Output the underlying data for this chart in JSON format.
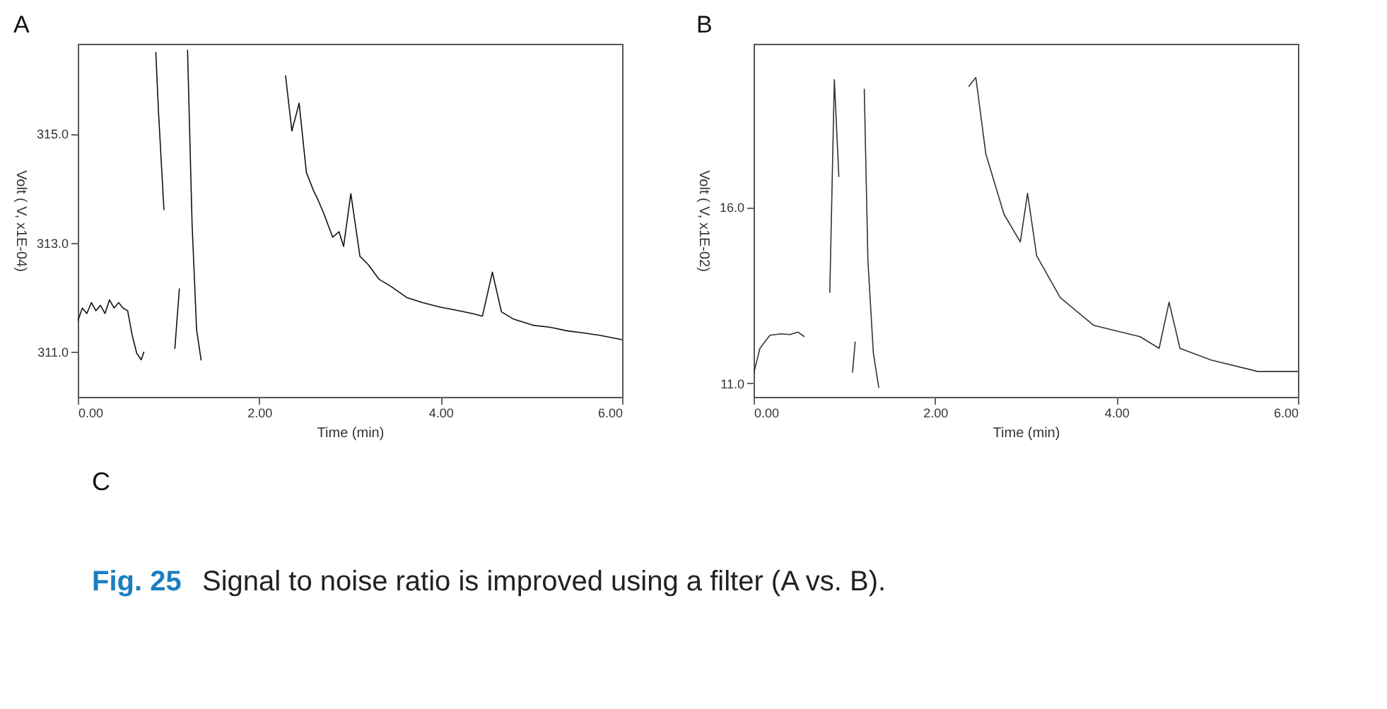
{
  "chart_data": [
    {
      "type": "line",
      "title": "A",
      "xlabel": "Time (min)",
      "ylabel": "Volt ( V, x1E-04)",
      "xlim": [
        0,
        6
      ],
      "ylim": [
        310.17,
        316.65
      ],
      "xticks": [
        {
          "value": 0,
          "label": "0.00"
        },
        {
          "value": 2,
          "label": "2.00"
        },
        {
          "value": 4,
          "label": "4.00"
        },
        {
          "value": 6,
          "label": "6.00"
        }
      ],
      "yticks": [
        {
          "value": 311,
          "label": "311.0"
        },
        {
          "value": 313,
          "label": "313.0"
        },
        {
          "value": 315,
          "label": "315.0"
        }
      ],
      "grid": false,
      "marker": "none",
      "line_style": "solid",
      "series": [
        {
          "color": "#111111",
          "x": [
            0,
            0.05,
            0.1,
            0.15,
            0.2,
            0.25,
            0.3,
            0.35,
            0.4,
            0.45,
            0.5,
            0.55,
            0.6,
            0.65,
            0.7,
            0.73,
            0.76,
            0.84,
            0.86,
            0.89,
            0.95,
            0.98,
            1.0,
            1.07,
            1.12,
            1.16,
            1.21,
            1.26,
            1.31,
            1.36,
            1.4,
            1.8,
            2.18,
            2.29,
            2.36,
            2.44,
            2.52,
            2.6,
            2.65,
            2.72,
            2.81,
            2.88,
            2.93,
            3.01,
            3.11,
            3.2,
            3.32,
            3.45,
            3.63,
            3.8,
            3.99,
            4.2,
            4.35,
            4.46,
            4.57,
            4.67,
            4.8,
            5.03,
            5.2,
            5.4,
            5.55,
            5.75,
            6.0
          ],
          "values": [
            311.56,
            311.8,
            311.7,
            311.9,
            311.75,
            311.85,
            311.7,
            311.95,
            311.8,
            311.9,
            311.8,
            311.75,
            311.3,
            310.97,
            310.85,
            311.0,
            null,
            null,
            316.5,
            315.4,
            313.6,
            null,
            null,
            311.05,
            312.16,
            null,
            316.54,
            313.35,
            311.4,
            310.84,
            null,
            null,
            null,
            316.07,
            315.05,
            315.56,
            314.29,
            313.95,
            313.78,
            313.5,
            313.1,
            313.2,
            312.93,
            313.9,
            312.75,
            312.6,
            312.33,
            312.2,
            311.99,
            311.9,
            311.82,
            311.75,
            311.7,
            311.65,
            312.46,
            311.73,
            311.6,
            311.48,
            311.45,
            311.38,
            311.35,
            311.3,
            311.22
          ]
        }
      ]
    },
    {
      "type": "line",
      "title": "B",
      "xlabel": "Time (min)",
      "ylabel": "Volt ( V, x1E-02)",
      "xlim": [
        0,
        6
      ],
      "ylim": [
        10.61,
        20.64
      ],
      "xticks": [
        {
          "value": 0,
          "label": "0.00"
        },
        {
          "value": 2,
          "label": "2.00"
        },
        {
          "value": 4,
          "label": "4.00"
        },
        {
          "value": 6,
          "label": "6.00"
        }
      ],
      "yticks": [
        {
          "value": 11,
          "label": "11.0"
        },
        {
          "value": 16,
          "label": "16.0"
        }
      ],
      "grid": false,
      "marker": "none",
      "line_style": "solid",
      "annotations": [
        "C",
        "Fig. 25",
        "Signal to noise ratio is improved using a filter (A vs. B)."
      ],
      "series": [
        {
          "color": "#333333",
          "x": [
            0,
            0.07,
            0.18,
            0.3,
            0.4,
            0.49,
            0.56,
            0.62,
            0.74,
            0.76,
            0.82,
            0.84,
            0.89,
            0.94,
            0.96,
            1.0,
            1.09,
            1.12,
            1.14,
            1.22,
            1.26,
            1.32,
            1.38,
            1.41,
            1.8,
            2.31,
            2.37,
            2.45,
            2.56,
            2.76,
            2.94,
            3.02,
            3.12,
            3.38,
            3.75,
            4.26,
            4.47,
            4.58,
            4.7,
            5.04,
            5.56,
            6.0
          ],
          "values": [
            11.26,
            11.99,
            12.36,
            12.4,
            12.38,
            12.45,
            12.32,
            null,
            null,
            null,
            null,
            13.57,
            19.62,
            16.86,
            null,
            null,
            11.3,
            12.18,
            null,
            19.36,
            14.49,
            11.86,
            10.87,
            null,
            null,
            null,
            19.42,
            19.68,
            17.51,
            15.8,
            15.01,
            16.39,
            14.62,
            13.43,
            12.64,
            12.32,
            11.99,
            13.3,
            11.99,
            11.66,
            11.33,
            11.33
          ]
        }
      ]
    }
  ]
}
